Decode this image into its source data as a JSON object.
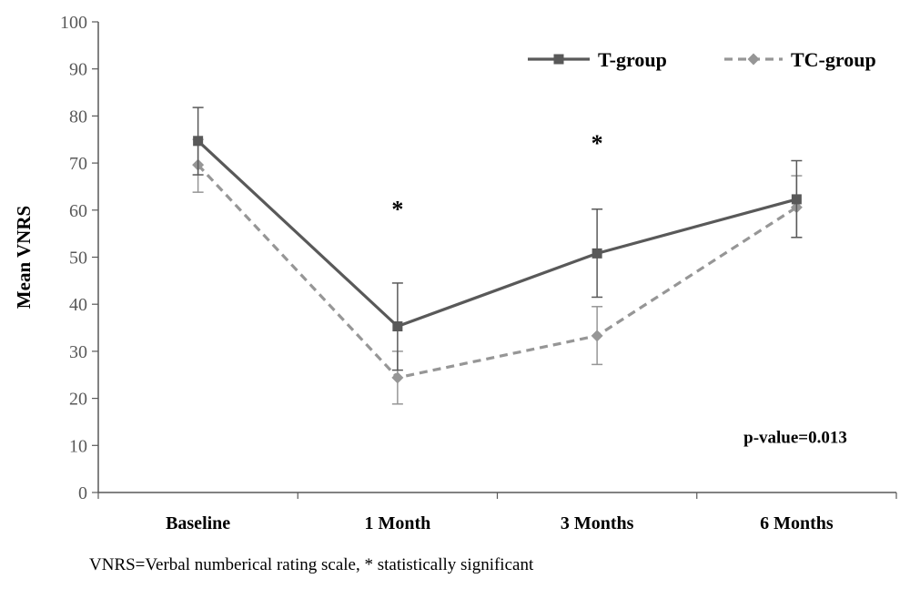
{
  "chart_data": {
    "type": "line",
    "ylabel": "Mean VNRS",
    "xlabel": "",
    "ylim": [
      0,
      100
    ],
    "yticks": [
      0,
      10,
      20,
      30,
      40,
      50,
      60,
      70,
      80,
      90,
      100
    ],
    "categories": [
      "Baseline",
      "1 Month",
      "3 Months",
      "6 Months"
    ],
    "series": [
      {
        "name": "T-group",
        "values": [
          74.7,
          35.3,
          50.8,
          62.3
        ],
        "error_low": [
          67.5,
          26.0,
          41.5,
          54.2
        ],
        "error_high": [
          81.8,
          44.5,
          60.2,
          70.5
        ],
        "color": "#595959",
        "line": "solid",
        "marker": "square"
      },
      {
        "name": "TC-group",
        "values": [
          69.6,
          24.4,
          33.3,
          60.6
        ],
        "error_low": [
          63.8,
          18.8,
          27.2,
          54.2
        ],
        "error_high": [
          75.0,
          30.0,
          39.5,
          67.3
        ],
        "color": "#969696",
        "line": "dashed",
        "marker": "diamond"
      }
    ],
    "annotations": [
      {
        "text": "*",
        "category": "1 Month",
        "y": 58.5
      },
      {
        "text": "*",
        "category": "3 Months",
        "y": 72.5
      },
      {
        "text": "p-value=0.013",
        "category": "6 Months",
        "y": 10.5
      }
    ],
    "grid": false,
    "legend": "top-right"
  },
  "footnote": "VNRS=Verbal numberical rating scale, * statistically significant"
}
